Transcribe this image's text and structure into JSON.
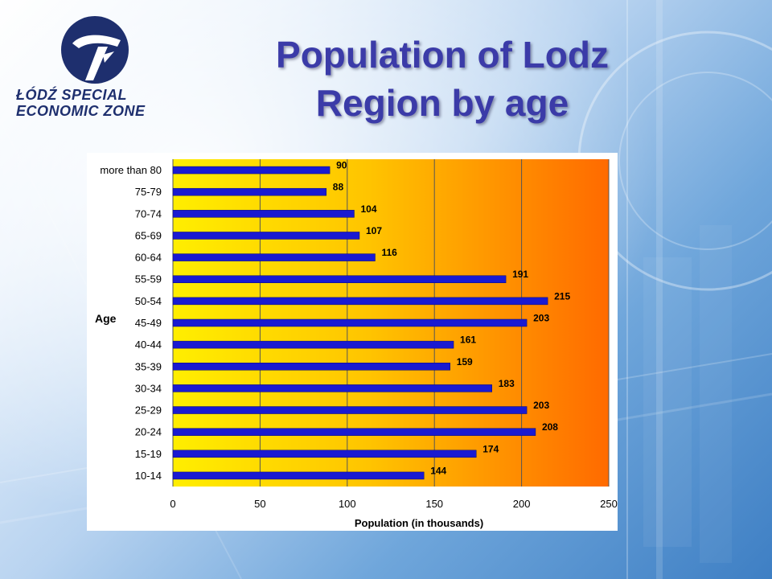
{
  "slide": {
    "title_line1": "Population of Lodz",
    "title_line2": "Region by age"
  },
  "logo": {
    "line1": "ŁÓDŹ SPECIAL",
    "line2": "ECONOMIC ZONE"
  },
  "colors": {
    "bar": "#1a1ad1",
    "title": "#3b3ba8",
    "plot_left": "#ffee00",
    "plot_right": "#ff6a00"
  },
  "chart_data": {
    "type": "bar",
    "orientation": "horizontal",
    "categories": [
      "more than 80",
      "75-79",
      "70-74",
      "65-69",
      "60-64",
      "55-59",
      "50-54",
      "45-49",
      "40-44",
      "35-39",
      "30-34",
      "25-29",
      "20-24",
      "15-19",
      "10-14"
    ],
    "values": [
      90,
      88,
      104,
      107,
      116,
      191,
      215,
      203,
      161,
      159,
      183,
      203,
      208,
      174,
      144
    ],
    "xlabel": "Population (in thousands)",
    "ylabel": "Age",
    "xlim": [
      0,
      250
    ],
    "xticks": [
      0,
      50,
      100,
      150,
      200,
      250
    ],
    "grid": "vertical",
    "legend": "none",
    "data_labels": true
  }
}
